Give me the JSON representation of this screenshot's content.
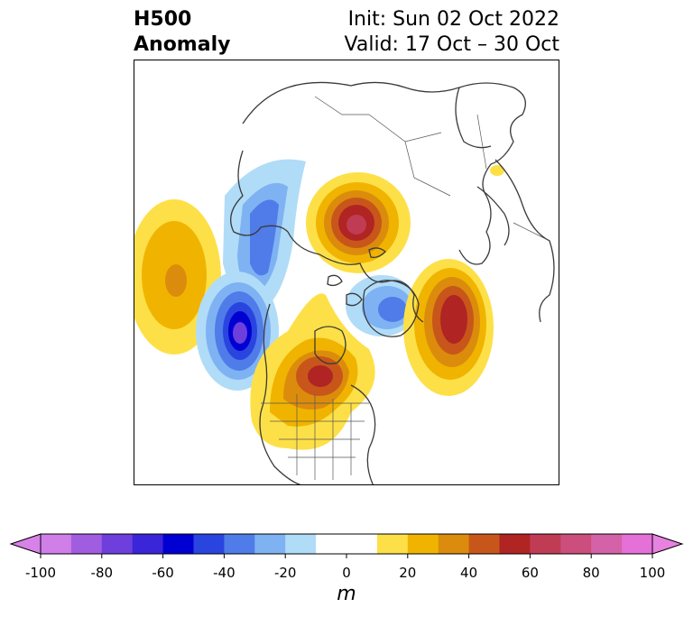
{
  "header": {
    "title_line1": "H500",
    "title_line2": "Anomaly",
    "init_text": "Init: Sun 02 Oct 2022",
    "valid_text": "Valid: 17 Oct – 30 Oct"
  },
  "colorbar": {
    "units": "m",
    "ticks": [
      "-100",
      "-80",
      "-60",
      "-40",
      "-20",
      "0",
      "20",
      "40",
      "60",
      "80",
      "100"
    ],
    "colors": [
      "#d07fe8",
      "#a05de0",
      "#6e3fdc",
      "#3a25d8",
      "#0000d2",
      "#2a44e0",
      "#4f7ce8",
      "#7fb2f2",
      "#b0dcf8",
      "#ffffff",
      "#ffffff",
      "#fde047",
      "#f0b400",
      "#dc8c0c",
      "#c8561a",
      "#b02424",
      "#c03c54",
      "#cc4e7c",
      "#d462a8",
      "#e470d8"
    ],
    "under_color": "#d882e8",
    "over_color": "#e882e0"
  },
  "map": {
    "anomalies": [
      {
        "label": "positive-pacific",
        "sign": "positive",
        "peak": 40
      },
      {
        "label": "negative-alaska",
        "sign": "negative",
        "peak": -40
      },
      {
        "label": "negative-north-pacific",
        "sign": "negative",
        "peak": -70
      },
      {
        "label": "positive-siberia",
        "sign": "positive",
        "peak": 70
      },
      {
        "label": "negative-greenland",
        "sign": "negative",
        "peak": -40
      },
      {
        "label": "positive-central-us",
        "sign": "positive",
        "peak": 60
      },
      {
        "label": "positive-north-atlantic",
        "sign": "positive",
        "peak": 60
      }
    ]
  }
}
